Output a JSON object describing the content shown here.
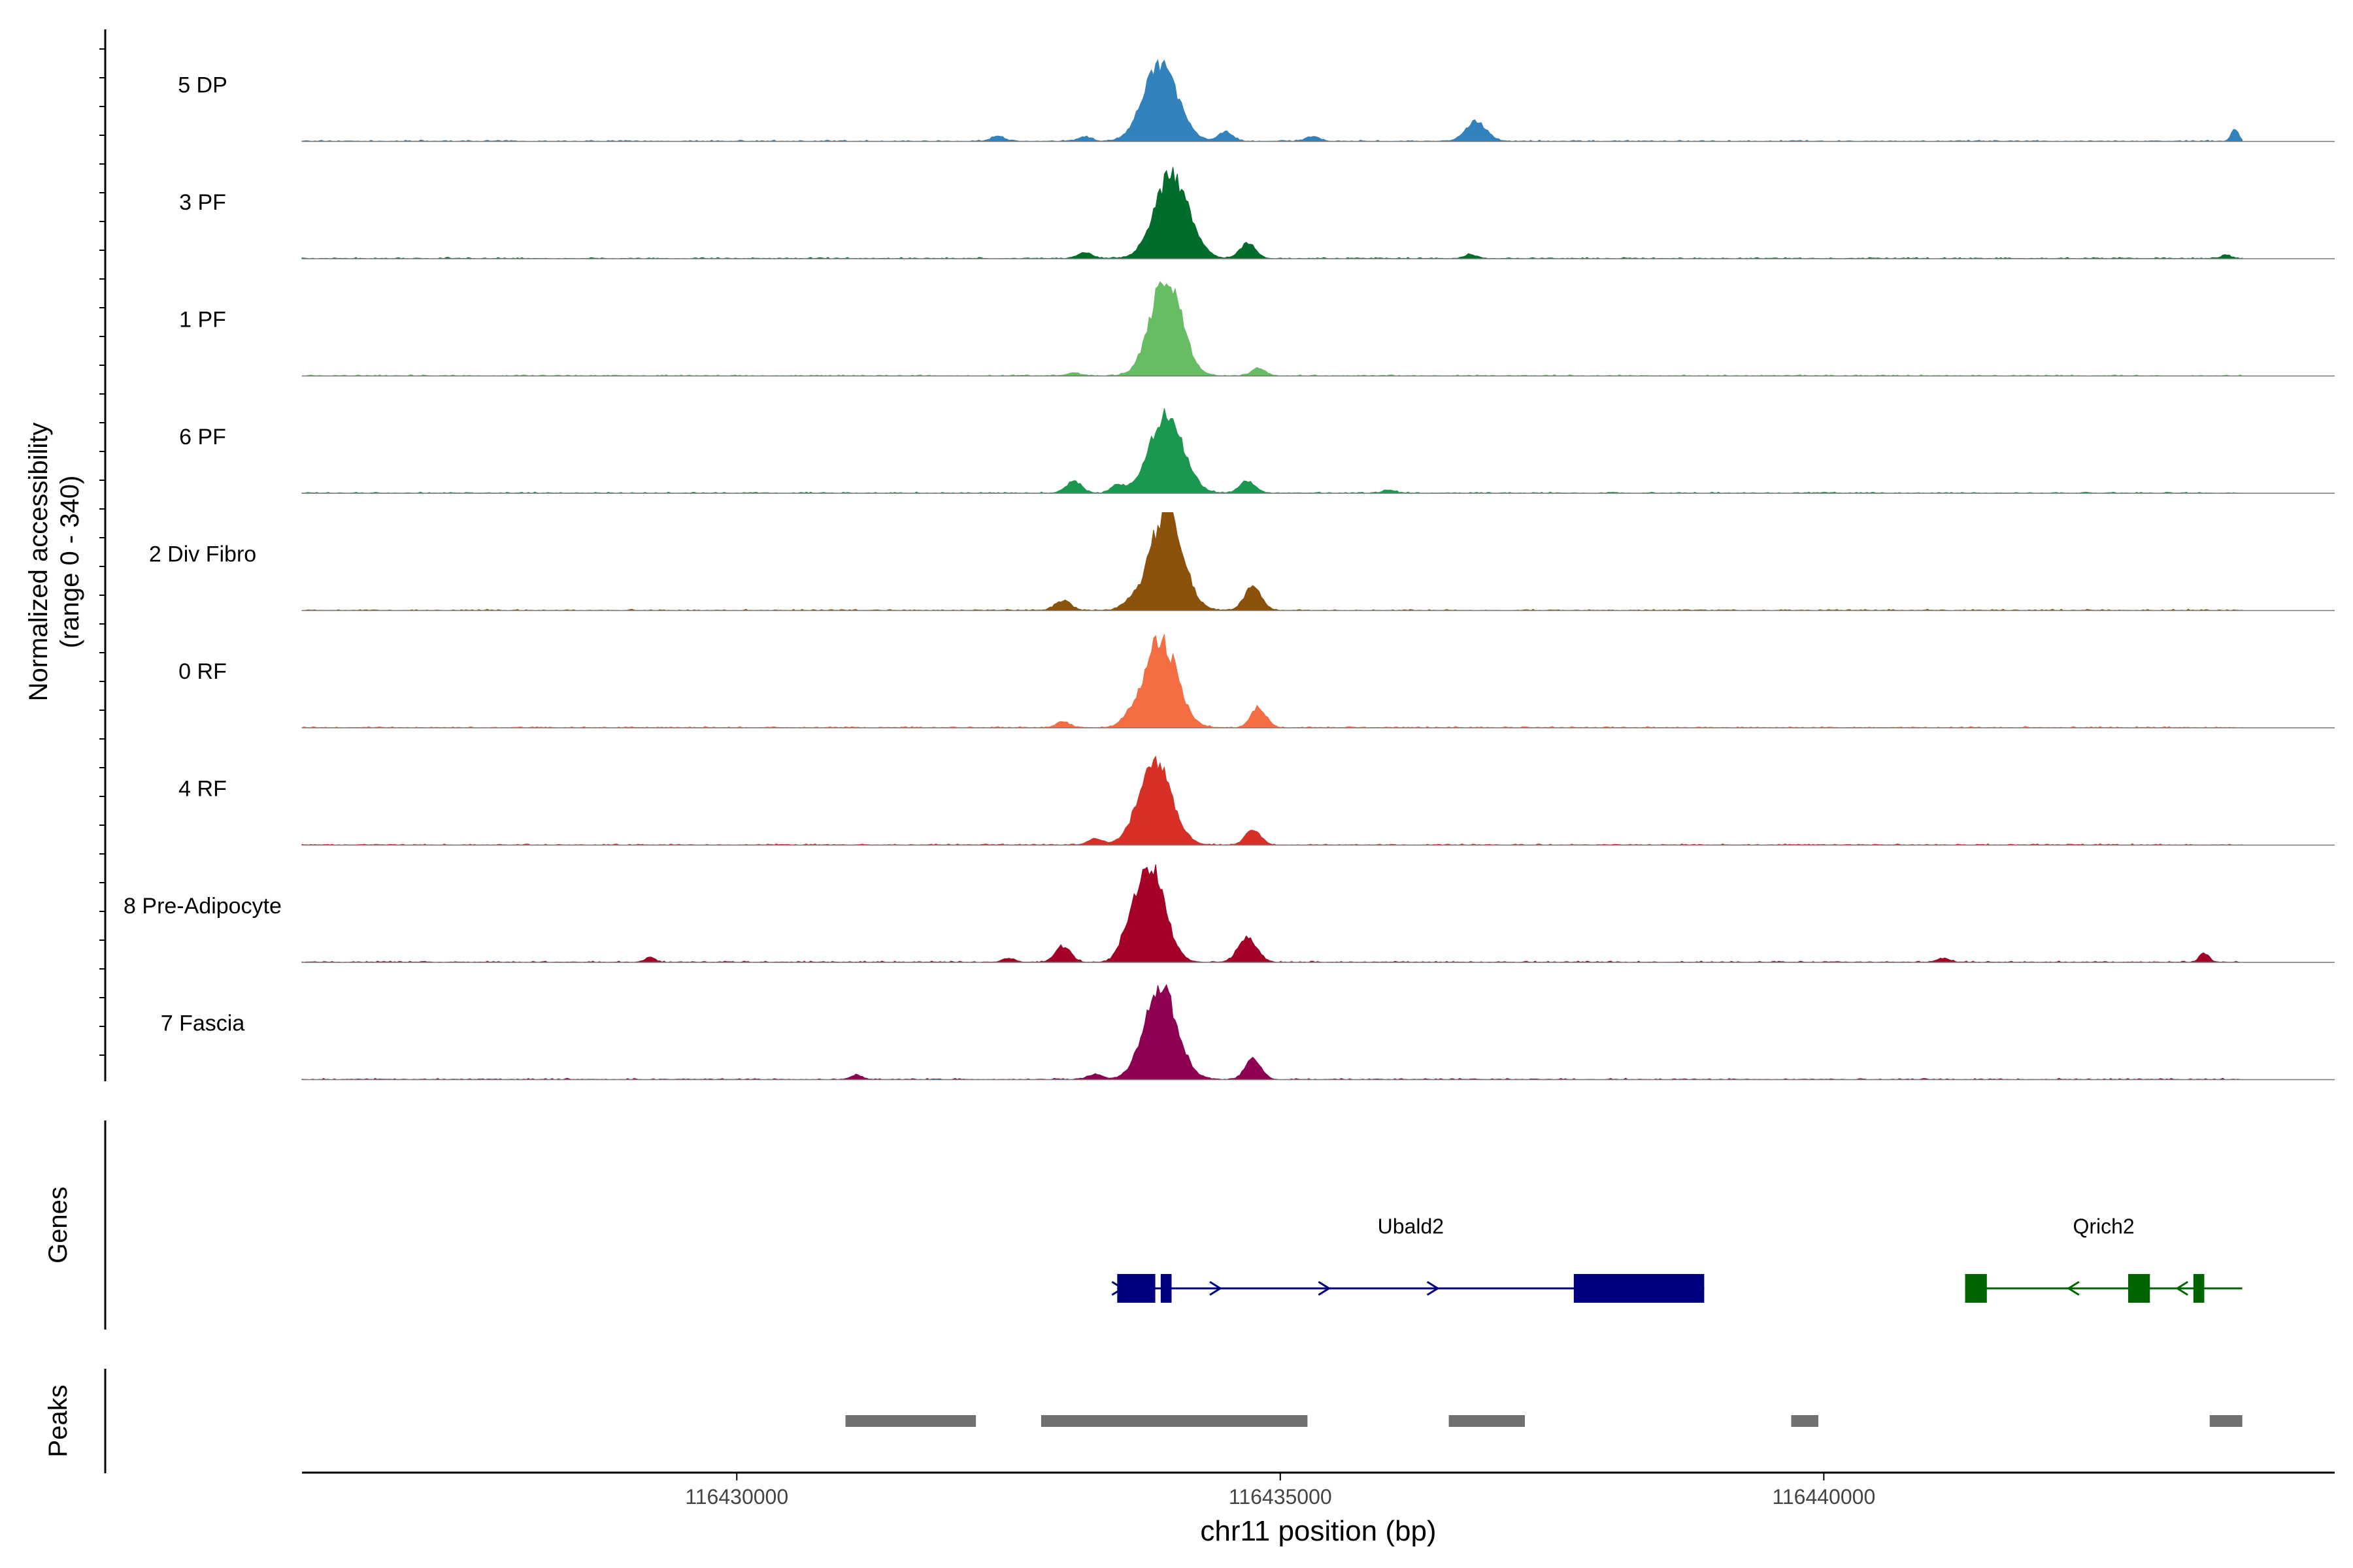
{
  "chart_data": {
    "type": "area",
    "panels": {
      "coverage": {
        "ylabel_line1": "Normalized accessibility",
        "ylabel_line2": "(range 0 - 340)",
        "yrange": [
          0,
          340
        ]
      },
      "genes": {
        "ylabel": "Genes"
      },
      "peaks": {
        "ylabel": "Peaks"
      }
    },
    "xlabel": "chr11 position (bp)",
    "xlim": [
      116426000,
      116444700
    ],
    "xticks": [
      {
        "value": 116430000,
        "label": "116430000"
      },
      {
        "value": 116435000,
        "label": "116435000"
      },
      {
        "value": 116440000,
        "label": "116440000"
      }
    ],
    "track_x_range": [
      116426000,
      116443850
    ],
    "series": [
      {
        "name": "5 DP",
        "color": "#3182bd",
        "peaks": [
          [
            116433900,
            0.78,
            220
          ],
          [
            116434500,
            0.1,
            90
          ],
          [
            116435300,
            0.05,
            90
          ],
          [
            116436800,
            0.2,
            130
          ],
          [
            116443780,
            0.12,
            50
          ],
          [
            116432400,
            0.05,
            90
          ],
          [
            116433200,
            0.05,
            80
          ]
        ]
      },
      {
        "name": "3 PF",
        "color": "#006d2c",
        "peaks": [
          [
            116434000,
            0.85,
            220
          ],
          [
            116434700,
            0.16,
            100
          ],
          [
            116433200,
            0.06,
            100
          ],
          [
            116436750,
            0.04,
            80
          ],
          [
            116443700,
            0.04,
            60
          ]
        ]
      },
      {
        "name": "1 PF",
        "color": "#66bd63",
        "peaks": [
          [
            116433950,
            1.0,
            200
          ],
          [
            116434800,
            0.08,
            90
          ],
          [
            116433100,
            0.03,
            90
          ]
        ]
      },
      {
        "name": "6 PF",
        "color": "#1a9850",
        "peaks": [
          [
            116433950,
            0.78,
            220
          ],
          [
            116434700,
            0.12,
            100
          ],
          [
            116433100,
            0.12,
            100
          ],
          [
            116433500,
            0.08,
            80
          ],
          [
            116436000,
            0.03,
            80
          ]
        ]
      },
      {
        "name": "2 Div Fibro",
        "color": "#8c510a",
        "peaks": [
          [
            116433950,
            1.0,
            210
          ],
          [
            116434750,
            0.24,
            110
          ],
          [
            116433000,
            0.1,
            100
          ],
          [
            116433600,
            0.06,
            90
          ]
        ]
      },
      {
        "name": "0 RF",
        "color": "#f46d43",
        "peaks": [
          [
            116433900,
            0.9,
            210
          ],
          [
            116434800,
            0.2,
            100
          ],
          [
            116433000,
            0.06,
            90
          ],
          [
            116433600,
            0.06,
            90
          ]
        ]
      },
      {
        "name": "4 RF",
        "color": "#d73027",
        "peaks": [
          [
            116433850,
            0.87,
            210
          ],
          [
            116434750,
            0.15,
            100
          ],
          [
            116433300,
            0.06,
            100
          ]
        ]
      },
      {
        "name": "8 Pre-Adipocyte",
        "color": "#a50026",
        "peaks": [
          [
            116433800,
            1.0,
            190
          ],
          [
            116434700,
            0.25,
            120
          ],
          [
            116433000,
            0.16,
            100
          ],
          [
            116433600,
            0.15,
            110
          ],
          [
            116429200,
            0.05,
            60
          ],
          [
            116432500,
            0.04,
            80
          ],
          [
            116441100,
            0.04,
            80
          ],
          [
            116443500,
            0.09,
            60
          ]
        ]
      },
      {
        "name": "7 Fascia",
        "color": "#8e0152",
        "peaks": [
          [
            116433900,
            0.95,
            210
          ],
          [
            116434750,
            0.22,
            100
          ],
          [
            116433300,
            0.05,
            100
          ],
          [
            116431100,
            0.04,
            80
          ]
        ]
      }
    ],
    "genes": [
      {
        "name": "Ubald2",
        "strand": "+",
        "color": "#000080",
        "start": 116433500,
        "end": 116438900,
        "exons": [
          [
            116433500,
            116433850
          ],
          [
            116433900,
            116434000
          ],
          [
            116437700,
            116438900
          ]
        ],
        "arrows": [
          116433500,
          116434400,
          116435400,
          116436400
        ]
      },
      {
        "name": "Qrich2",
        "strand": "-",
        "color": "#006400",
        "start": 116441300,
        "end": 116443850,
        "exons": [
          [
            116441300,
            116441500
          ],
          [
            116442800,
            116443000
          ],
          [
            116443400,
            116443500
          ]
        ],
        "arrows": [
          116442300,
          116443300
        ]
      }
    ],
    "peaks": [
      [
        116431000,
        116432200
      ],
      [
        116432800,
        116435250
      ],
      [
        116436550,
        116437250
      ],
      [
        116439700,
        116439950
      ],
      [
        116443550,
        116443850
      ]
    ],
    "peak_color": "#707070"
  }
}
